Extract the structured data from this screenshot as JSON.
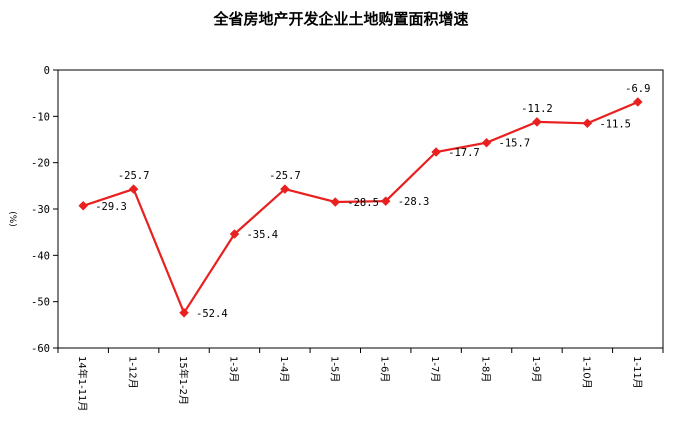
{
  "chart_data": {
    "type": "line",
    "title": "全省房地产开发企业土地购置面积增速",
    "ylabel": "(%)",
    "xlabel": "",
    "ylim": [
      -60,
      0
    ],
    "yticks": [
      0,
      -10,
      -20,
      -30,
      -40,
      -50,
      -60
    ],
    "categories": [
      "14年1-11月",
      "1-12月",
      "15年1-2月",
      "1-3月",
      "1-4月",
      "1-5月",
      "1-6月",
      "1-7月",
      "1-8月",
      "1-9月",
      "1-10月",
      "1-11月"
    ],
    "series": [
      {
        "values": [
          -29.3,
          -25.7,
          -52.4,
          -35.4,
          -25.7,
          -28.5,
          -28.3,
          -17.7,
          -15.7,
          -11.2,
          -11.5,
          -6.9
        ],
        "labels": [
          "-29.3",
          "-25.7",
          "-52.4",
          "-35.4",
          "-25.7",
          "-28.5",
          "-28.3",
          "-17.7",
          "-15.7",
          "-11.2",
          "-11.5",
          "-6.9"
        ],
        "color": "#e8201f",
        "marker": "diamond"
      }
    ],
    "grid": false,
    "legend": "none"
  }
}
